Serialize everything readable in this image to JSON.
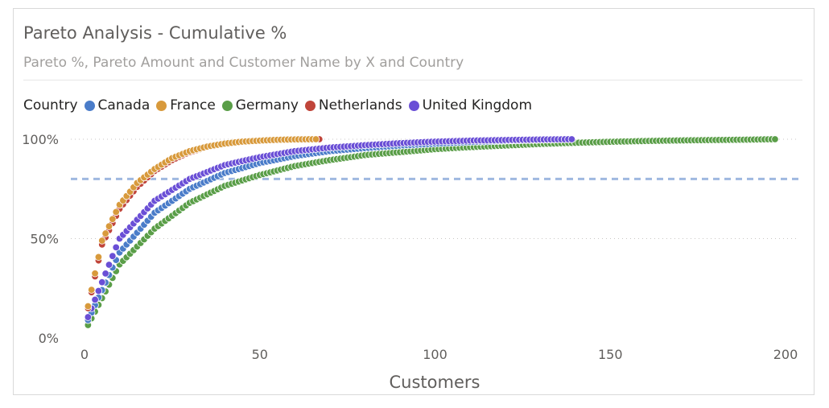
{
  "header": {
    "title": "Pareto Analysis - Cumulative %",
    "subtitle": "Pareto %, Pareto Amount and Customer Name by X and Country"
  },
  "legend": {
    "title": "Country",
    "items": [
      {
        "label": "Canada",
        "color": "#4a7cc9"
      },
      {
        "label": "France",
        "color": "#d89a3c"
      },
      {
        "label": "Germany",
        "color": "#5a9e48"
      },
      {
        "label": "Netherlands",
        "color": "#c0453a"
      },
      {
        "label": "United Kingdom",
        "color": "#6a4fd6"
      }
    ]
  },
  "chart_data": {
    "type": "scatter",
    "title": "Pareto Analysis - Cumulative %",
    "subtitle": "Pareto %, Pareto Amount and Customer Name by X and Country",
    "xlabel": "Customers",
    "ylabel": "",
    "xlim": [
      0,
      200
    ],
    "ylim": [
      0,
      100
    ],
    "x_ticks": [
      "0",
      "50",
      "100",
      "150",
      "200"
    ],
    "y_ticks": [
      "0%",
      "50%",
      "100%"
    ],
    "y_tick_values": [
      0,
      50,
      100
    ],
    "x_tick_values": [
      0,
      50,
      100,
      150,
      200
    ],
    "grid": "horizontal dotted",
    "legend_position": "top-left",
    "reference_line": {
      "y": 80,
      "style": "dashed",
      "color": "#9fb8e0"
    },
    "series": [
      {
        "name": "Germany",
        "color": "#5a9e48",
        "x": [
          1,
          10,
          20,
          30,
          40,
          50,
          60,
          70,
          80,
          90,
          100,
          110,
          120,
          130,
          140,
          150,
          160,
          170,
          180,
          190,
          197
        ],
        "y": [
          6.5,
          37,
          55,
          68,
          76.5,
          82,
          86.5,
          89.5,
          92,
          93.5,
          95,
          96,
          96.8,
          97.6,
          98.2,
          98.7,
          99.1,
          99.4,
          99.6,
          99.8,
          100
        ]
      },
      {
        "name": "Canada",
        "color": "#4a7cc9",
        "x": [
          1,
          10,
          20,
          30,
          40,
          50,
          60,
          70,
          80,
          90,
          100,
          110,
          120,
          130,
          139
        ],
        "y": [
          9,
          43,
          63,
          75,
          83,
          88,
          91.5,
          94,
          95.5,
          96.8,
          97.8,
          98.6,
          99.2,
          99.7,
          100
        ]
      },
      {
        "name": "United Kingdom",
        "color": "#6a4fd6",
        "x": [
          1,
          10,
          20,
          30,
          40,
          50,
          60,
          70,
          80,
          90,
          100,
          110,
          120,
          130,
          139
        ],
        "y": [
          10.5,
          50,
          69,
          80,
          87,
          91,
          94,
          95.8,
          97,
          98,
          98.8,
          99.3,
          99.6,
          99.85,
          100
        ]
      },
      {
        "name": "Netherlands",
        "color": "#c0453a",
        "x": [
          1,
          5,
          10,
          15,
          20,
          25,
          30,
          35,
          40,
          45,
          50,
          55,
          60,
          67
        ],
        "y": [
          15,
          47,
          65,
          76,
          84,
          89.5,
          93.5,
          96,
          97.6,
          98.6,
          99.2,
          99.6,
          99.85,
          100
        ]
      },
      {
        "name": "France",
        "color": "#d89a3c",
        "x": [
          1,
          5,
          10,
          15,
          20,
          25,
          30,
          35,
          40,
          45,
          50,
          55,
          60,
          66
        ],
        "y": [
          16,
          49,
          67,
          78,
          85,
          90.5,
          94,
          96.3,
          97.8,
          98.8,
          99.3,
          99.7,
          99.9,
          100
        ]
      }
    ]
  }
}
